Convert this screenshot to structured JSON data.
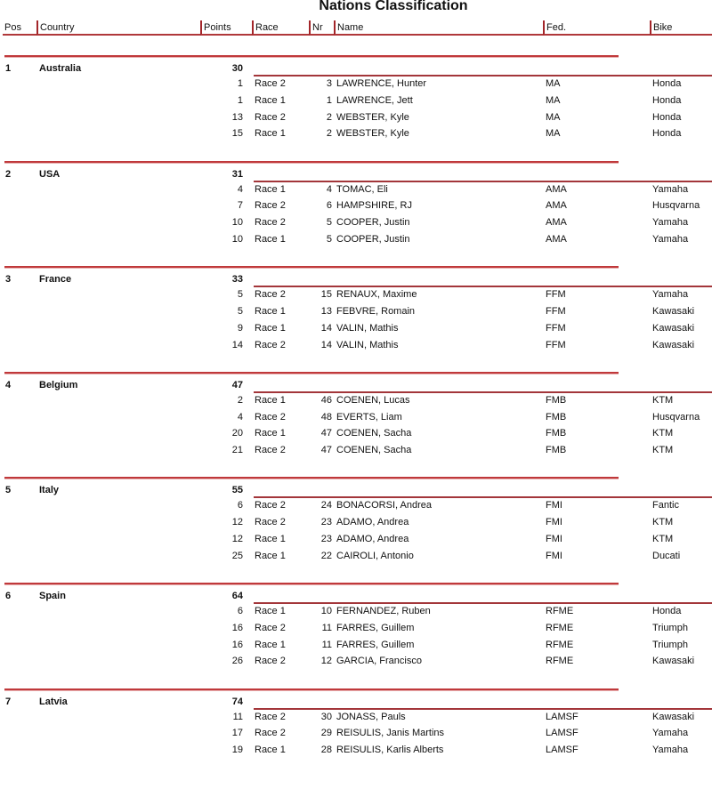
{
  "title": "Nations Classification",
  "headers": {
    "pos": "Pos",
    "country": "Country",
    "points": "Points",
    "race": "Race",
    "nr": "Nr",
    "name": "Name",
    "fed": "Fed.",
    "bike": "Bike"
  },
  "nations": [
    {
      "pos": "1",
      "country": "Australia",
      "points": "30",
      "riders": [
        {
          "pts": "1",
          "race": "Race 2",
          "nr": "3",
          "name": "LAWRENCE, Hunter",
          "fed": "MA",
          "bike": "Honda"
        },
        {
          "pts": "1",
          "race": "Race 1",
          "nr": "1",
          "name": "LAWRENCE, Jett",
          "fed": "MA",
          "bike": "Honda"
        },
        {
          "pts": "13",
          "race": "Race 2",
          "nr": "2",
          "name": "WEBSTER, Kyle",
          "fed": "MA",
          "bike": "Honda"
        },
        {
          "pts": "15",
          "race": "Race 1",
          "nr": "2",
          "name": "WEBSTER, Kyle",
          "fed": "MA",
          "bike": "Honda"
        }
      ]
    },
    {
      "pos": "2",
      "country": "USA",
      "points": "31",
      "riders": [
        {
          "pts": "4",
          "race": "Race 1",
          "nr": "4",
          "name": "TOMAC, Eli",
          "fed": "AMA",
          "bike": "Yamaha"
        },
        {
          "pts": "7",
          "race": "Race 2",
          "nr": "6",
          "name": "HAMPSHIRE, RJ",
          "fed": "AMA",
          "bike": "Husqvarna"
        },
        {
          "pts": "10",
          "race": "Race 2",
          "nr": "5",
          "name": "COOPER, Justin",
          "fed": "AMA",
          "bike": "Yamaha"
        },
        {
          "pts": "10",
          "race": "Race 1",
          "nr": "5",
          "name": "COOPER, Justin",
          "fed": "AMA",
          "bike": "Yamaha"
        }
      ]
    },
    {
      "pos": "3",
      "country": "France",
      "points": "33",
      "riders": [
        {
          "pts": "5",
          "race": "Race 2",
          "nr": "15",
          "name": "RENAUX, Maxime",
          "fed": "FFM",
          "bike": "Yamaha"
        },
        {
          "pts": "5",
          "race": "Race 1",
          "nr": "13",
          "name": "FEBVRE, Romain",
          "fed": "FFM",
          "bike": "Kawasaki"
        },
        {
          "pts": "9",
          "race": "Race 1",
          "nr": "14",
          "name": "VALIN, Mathis",
          "fed": "FFM",
          "bike": "Kawasaki"
        },
        {
          "pts": "14",
          "race": "Race 2",
          "nr": "14",
          "name": "VALIN, Mathis",
          "fed": "FFM",
          "bike": "Kawasaki"
        }
      ]
    },
    {
      "pos": "4",
      "country": "Belgium",
      "points": "47",
      "riders": [
        {
          "pts": "2",
          "race": "Race 1",
          "nr": "46",
          "name": "COENEN, Lucas",
          "fed": "FMB",
          "bike": "KTM"
        },
        {
          "pts": "4",
          "race": "Race 2",
          "nr": "48",
          "name": "EVERTS, Liam",
          "fed": "FMB",
          "bike": "Husqvarna"
        },
        {
          "pts": "20",
          "race": "Race 1",
          "nr": "47",
          "name": "COENEN, Sacha",
          "fed": "FMB",
          "bike": "KTM"
        },
        {
          "pts": "21",
          "race": "Race 2",
          "nr": "47",
          "name": "COENEN, Sacha",
          "fed": "FMB",
          "bike": "KTM"
        }
      ]
    },
    {
      "pos": "5",
      "country": "Italy",
      "points": "55",
      "riders": [
        {
          "pts": "6",
          "race": "Race 2",
          "nr": "24",
          "name": "BONACORSI, Andrea",
          "fed": "FMI",
          "bike": "Fantic"
        },
        {
          "pts": "12",
          "race": "Race 2",
          "nr": "23",
          "name": "ADAMO, Andrea",
          "fed": "FMI",
          "bike": "KTM"
        },
        {
          "pts": "12",
          "race": "Race 1",
          "nr": "23",
          "name": "ADAMO, Andrea",
          "fed": "FMI",
          "bike": "KTM"
        },
        {
          "pts": "25",
          "race": "Race 1",
          "nr": "22",
          "name": "CAIROLI, Antonio",
          "fed": "FMI",
          "bike": "Ducati"
        }
      ]
    },
    {
      "pos": "6",
      "country": "Spain",
      "points": "64",
      "riders": [
        {
          "pts": "6",
          "race": "Race 1",
          "nr": "10",
          "name": "FERNANDEZ, Ruben",
          "fed": "RFME",
          "bike": "Honda"
        },
        {
          "pts": "16",
          "race": "Race 2",
          "nr": "11",
          "name": "FARRES, Guillem",
          "fed": "RFME",
          "bike": "Triumph"
        },
        {
          "pts": "16",
          "race": "Race 1",
          "nr": "11",
          "name": "FARRES, Guillem",
          "fed": "RFME",
          "bike": "Triumph"
        },
        {
          "pts": "26",
          "race": "Race 2",
          "nr": "12",
          "name": "GARCIA, Francisco",
          "fed": "RFME",
          "bike": "Kawasaki"
        }
      ]
    },
    {
      "pos": "7",
      "country": "Latvia",
      "points": "74",
      "riders": [
        {
          "pts": "11",
          "race": "Race 2",
          "nr": "30",
          "name": "JONASS, Pauls",
          "fed": "LAMSF",
          "bike": "Kawasaki"
        },
        {
          "pts": "17",
          "race": "Race 2",
          "nr": "29",
          "name": "REISULIS, Janis Martins",
          "fed": "LAMSF",
          "bike": "Yamaha"
        },
        {
          "pts": "19",
          "race": "Race 1",
          "nr": "28",
          "name": "REISULIS, Karlis Alberts",
          "fed": "LAMSF",
          "bike": "Yamaha"
        }
      ]
    }
  ]
}
